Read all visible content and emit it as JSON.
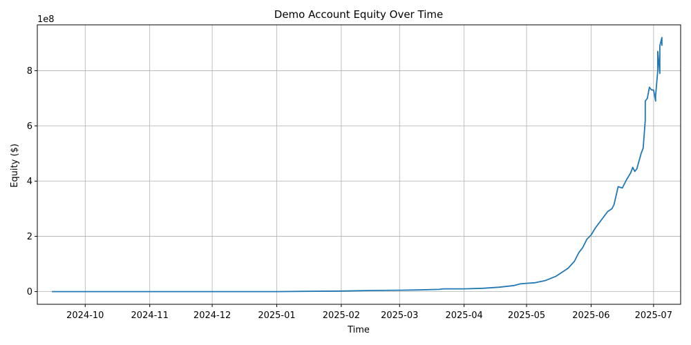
{
  "chart_data": {
    "type": "line",
    "title": "Demo Account Equity Over Time",
    "xlabel": "Time",
    "ylabel": "Equity ($)",
    "y_offset_label": "1e8",
    "y_scale_factor": 100000000,
    "grid": true,
    "ylim": [
      -0.46,
      9.66
    ],
    "xlim": [
      "2024-09-08",
      "2025-07-14"
    ],
    "yticks": [
      0,
      2,
      4,
      6,
      8
    ],
    "xticks": [
      "2024-10",
      "2024-11",
      "2024-12",
      "2025-01",
      "2025-02",
      "2025-03",
      "2025-04",
      "2025-05",
      "2025-06",
      "2025-07"
    ],
    "series": [
      {
        "color": "#1f77b4",
        "points": [
          [
            "2024-09-15",
            0.0
          ],
          [
            "2024-10-01",
            0.0
          ],
          [
            "2024-11-01",
            0.0
          ],
          [
            "2024-12-01",
            0.0
          ],
          [
            "2025-01-01",
            0.0
          ],
          [
            "2025-01-15",
            0.01
          ],
          [
            "2025-02-01",
            0.02
          ],
          [
            "2025-02-15",
            0.04
          ],
          [
            "2025-03-01",
            0.05
          ],
          [
            "2025-03-10",
            0.06
          ],
          [
            "2025-03-20",
            0.08
          ],
          [
            "2025-03-22",
            0.1
          ],
          [
            "2025-04-01",
            0.1
          ],
          [
            "2025-04-10",
            0.12
          ],
          [
            "2025-04-18",
            0.16
          ],
          [
            "2025-04-25",
            0.22
          ],
          [
            "2025-04-28",
            0.28
          ],
          [
            "2025-05-01",
            0.3
          ],
          [
            "2025-05-05",
            0.32
          ],
          [
            "2025-05-10",
            0.4
          ],
          [
            "2025-05-15",
            0.55
          ],
          [
            "2025-05-18",
            0.7
          ],
          [
            "2025-05-21",
            0.85
          ],
          [
            "2025-05-24",
            1.1
          ],
          [
            "2025-05-26",
            1.4
          ],
          [
            "2025-05-28",
            1.6
          ],
          [
            "2025-05-30",
            1.9
          ],
          [
            "2025-06-01",
            2.05
          ],
          [
            "2025-06-03",
            2.3
          ],
          [
            "2025-06-06",
            2.6
          ],
          [
            "2025-06-09",
            2.9
          ],
          [
            "2025-06-11",
            3.0
          ],
          [
            "2025-06-12",
            3.15
          ],
          [
            "2025-06-14",
            3.8
          ],
          [
            "2025-06-16",
            3.75
          ],
          [
            "2025-06-18",
            4.05
          ],
          [
            "2025-06-20",
            4.3
          ],
          [
            "2025-06-21",
            4.5
          ],
          [
            "2025-06-22",
            4.35
          ],
          [
            "2025-06-23",
            4.45
          ],
          [
            "2025-06-25",
            5.0
          ],
          [
            "2025-06-26",
            5.2
          ],
          [
            "2025-06-27",
            6.2
          ],
          [
            "2025-06-27",
            6.9
          ],
          [
            "2025-06-28",
            7.0
          ],
          [
            "2025-06-29",
            7.4
          ],
          [
            "2025-06-30",
            7.3
          ],
          [
            "2025-07-01",
            7.3
          ],
          [
            "2025-07-02",
            6.9
          ],
          [
            "2025-07-02",
            7.1
          ],
          [
            "2025-07-03",
            8.0
          ],
          [
            "2025-07-03",
            8.7
          ],
          [
            "2025-07-04",
            7.9
          ],
          [
            "2025-07-04",
            8.9
          ],
          [
            "2025-07-05",
            9.2
          ],
          [
            "2025-07-05",
            8.9
          ]
        ]
      }
    ]
  }
}
